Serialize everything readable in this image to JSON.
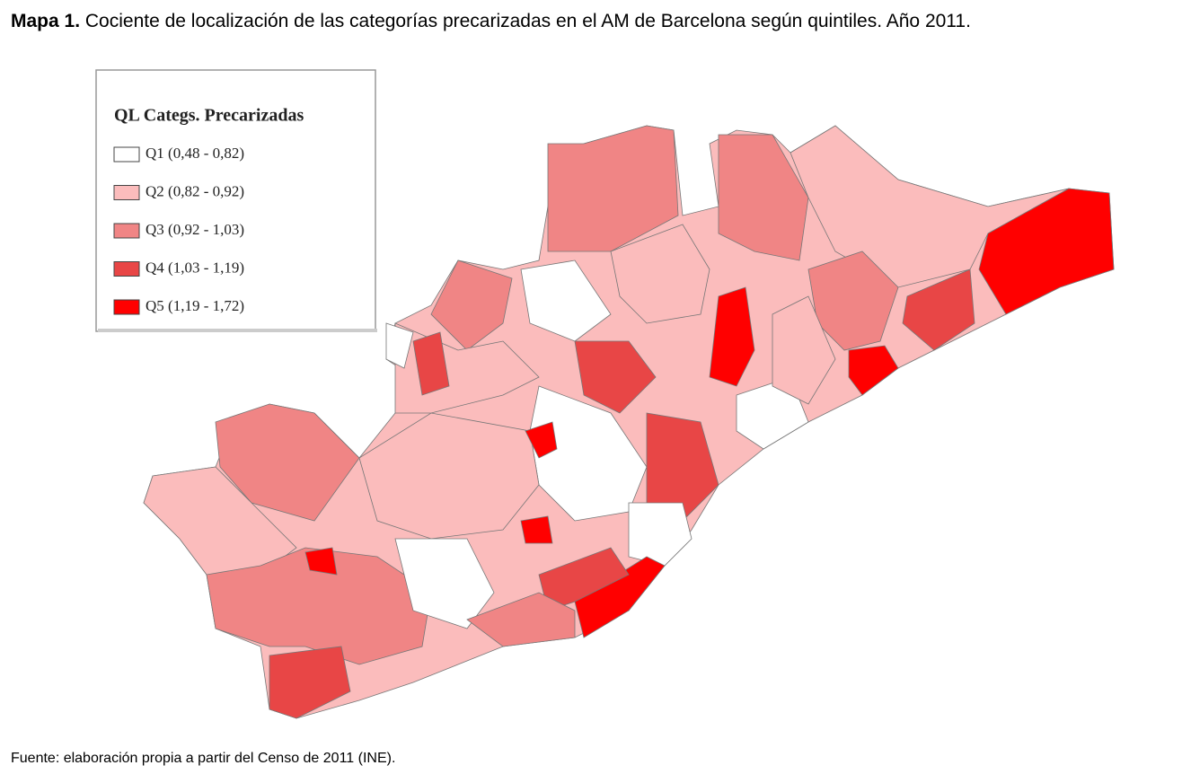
{
  "title": {
    "label": "Mapa 1.",
    "text": "Cociente de localización de las categorías precarizadas en el AM de Barcelona según quintiles. Año 2011."
  },
  "legend": {
    "title": "QL Categs. Precarizadas",
    "items": [
      {
        "label": "Q1 (0,48 - 0,82)",
        "color": "#ffffff"
      },
      {
        "label": "Q2 (0,82 - 0,92)",
        "color": "#fbbcbc"
      },
      {
        "label": "Q3 (0,92 - 1,03)",
        "color": "#f08585"
      },
      {
        "label": "Q4 (1,03 - 1,19)",
        "color": "#e84646"
      },
      {
        "label": "Q5 (1,19 - 1,72)",
        "color": "#ff0000"
      }
    ]
  },
  "source": "Fuente: elaboración propia a partir del Censo de 2011 (INE)."
}
